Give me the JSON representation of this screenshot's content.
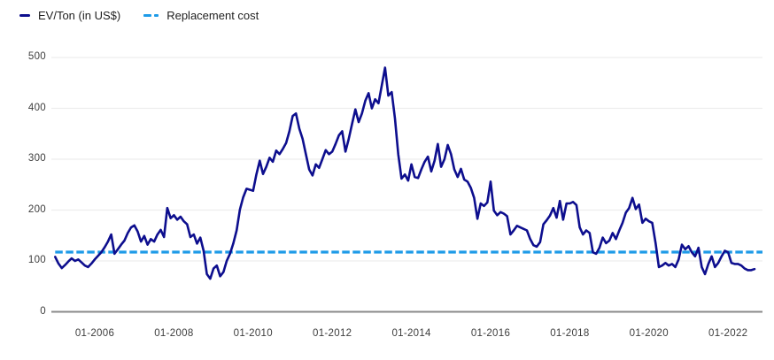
{
  "legend": {
    "series1_label": "EV/Ton (in US$)",
    "series2_label": "Replacement cost"
  },
  "colors": {
    "ev_line": "#0d0e8e",
    "replacement_line": "#1e9be8",
    "grid": "#ededed",
    "axis": "#8a8a8a",
    "tick_text": "#3d3d3d"
  },
  "chart_data": {
    "type": "line",
    "title": "",
    "x_start": "01-2005",
    "x_end": "09-2022",
    "frequency": "monthly",
    "grid": "horizontal",
    "legend_position": "top-left",
    "ylim": [
      0,
      520
    ],
    "y_ticks": [
      0,
      100,
      200,
      300,
      400,
      500
    ],
    "x_tick_labels": [
      {
        "label": "01-2006",
        "month_index": 12
      },
      {
        "label": "01-2008",
        "month_index": 36
      },
      {
        "label": "01-2010",
        "month_index": 60
      },
      {
        "label": "01-2012",
        "month_index": 84
      },
      {
        "label": "01-2014",
        "month_index": 108
      },
      {
        "label": "01-2016",
        "month_index": 132
      },
      {
        "label": "01-2018",
        "month_index": 156
      },
      {
        "label": "01-2020",
        "month_index": 180
      },
      {
        "label": "01-2022",
        "month_index": 204
      }
    ],
    "series": [
      {
        "name": "EV/Ton (in US$)",
        "values": [
          108,
          95,
          86,
          92,
          99,
          105,
          100,
          103,
          97,
          91,
          88,
          95,
          103,
          110,
          117,
          127,
          138,
          152,
          114,
          123,
          132,
          140,
          155,
          166,
          170,
          158,
          138,
          149,
          132,
          143,
          138,
          152,
          161,
          147,
          204,
          184,
          190,
          181,
          187,
          178,
          172,
          147,
          152,
          134,
          146,
          120,
          74,
          65,
          85,
          91,
          70,
          78,
          100,
          114,
          134,
          160,
          201,
          225,
          242,
          240,
          238,
          270,
          297,
          271,
          285,
          303,
          295,
          317,
          310,
          320,
          332,
          355,
          385,
          390,
          360,
          340,
          310,
          280,
          268,
          290,
          283,
          300,
          318,
          310,
          315,
          330,
          347,
          355,
          315,
          340,
          370,
          398,
          373,
          390,
          415,
          430,
          400,
          418,
          410,
          445,
          480,
          425,
          432,
          380,
          310,
          262,
          270,
          258,
          290,
          265,
          263,
          280,
          295,
          305,
          276,
          297,
          330,
          285,
          300,
          328,
          310,
          280,
          265,
          281,
          260,
          256,
          244,
          224,
          183,
          213,
          208,
          215,
          256,
          199,
          190,
          196,
          193,
          188,
          152,
          160,
          169,
          166,
          163,
          160,
          143,
          131,
          128,
          137,
          172,
          180,
          189,
          204,
          185,
          218,
          181,
          213,
          213,
          216,
          210,
          166,
          152,
          160,
          155,
          117,
          114,
          126,
          146,
          135,
          140,
          155,
          143,
          160,
          175,
          195,
          204,
          224,
          202,
          211,
          175,
          183,
          178,
          175,
          135,
          88,
          91,
          96,
          91,
          94,
          88,
          103,
          132,
          123,
          129,
          117,
          109,
          126,
          88,
          74,
          94,
          109,
          88,
          96,
          109,
          120,
          117,
          96,
          94,
          94,
          91,
          85,
          82,
          82,
          84
        ]
      },
      {
        "name": "Replacement cost",
        "constant_value": 120
      }
    ]
  }
}
